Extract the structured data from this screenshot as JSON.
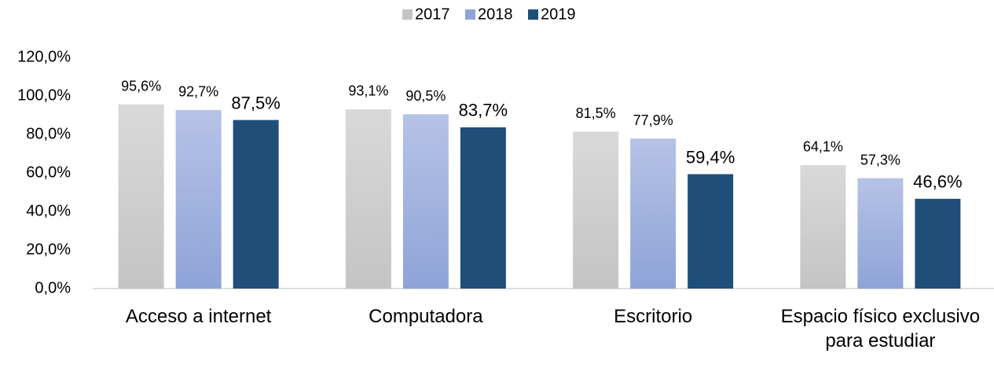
{
  "chart_data": {
    "type": "bar",
    "categories": [
      "Acceso a internet",
      "Computadora",
      "Escritorio",
      "Espacio físico exclusivo para estudiar"
    ],
    "series": [
      {
        "name": "2017",
        "color": "#c4c4c4",
        "values": [
          95.6,
          93.1,
          81.5,
          64.1
        ],
        "value_labels": [
          "95,6%",
          "93,1%",
          "81,5%",
          "64,1%"
        ]
      },
      {
        "name": "2018",
        "color": "#8ea3d8",
        "values": [
          92.7,
          90.5,
          77.9,
          57.3
        ],
        "value_labels": [
          "92,7%",
          "90,5%",
          "77,9%",
          "57,3%"
        ]
      },
      {
        "name": "2019",
        "color": "#1f4e79",
        "values": [
          87.5,
          83.7,
          59.4,
          46.6
        ],
        "value_labels": [
          "87,5%",
          "83,7%",
          "59,4%",
          "46,6%"
        ]
      }
    ],
    "ylim": [
      0,
      120
    ],
    "yticks": [
      {
        "value": 0,
        "label": "0,0%"
      },
      {
        "value": 20,
        "label": "20,0%"
      },
      {
        "value": 40,
        "label": "40,0%"
      },
      {
        "value": 60,
        "label": "60,0%"
      },
      {
        "value": 80,
        "label": "80,0%"
      },
      {
        "value": 100,
        "label": "100,0%"
      },
      {
        "value": 120,
        "label": "120,0%"
      }
    ],
    "grid": false,
    "legend": "top"
  }
}
